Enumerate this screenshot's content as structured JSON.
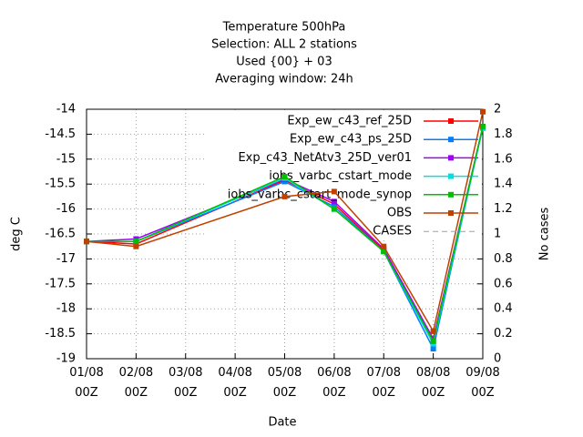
{
  "chart_data": {
    "type": "line",
    "title": [
      "Temperature 500hPa",
      "Selection: ALL      2 stations",
      "Used {00} + 03",
      "Averaging window: 24h"
    ],
    "xlabel": "Date",
    "ylabel": "deg C",
    "y2label": "No cases",
    "xlim": [
      1,
      9
    ],
    "xticks": [
      {
        "value": 1,
        "label": "01/08\n00Z"
      },
      {
        "value": 2,
        "label": "02/08\n00Z"
      },
      {
        "value": 3,
        "label": "03/08\n00Z"
      },
      {
        "value": 4,
        "label": "04/08\n00Z"
      },
      {
        "value": 5,
        "label": "05/08\n00Z"
      },
      {
        "value": 6,
        "label": "06/08\n00Z"
      },
      {
        "value": 7,
        "label": "07/08\n00Z"
      },
      {
        "value": 8,
        "label": "08/08\n00Z"
      },
      {
        "value": 9,
        "label": "09/08\n00Z"
      }
    ],
    "ylim": [
      -19,
      -14
    ],
    "yticks": [
      -19,
      -18.5,
      -18,
      -17.5,
      -17,
      -16.5,
      -16,
      -15.5,
      -15,
      -14.5,
      -14
    ],
    "y2lim": [
      0,
      2
    ],
    "y2ticks": [
      0,
      0.2,
      0.4,
      0.6,
      0.8,
      1,
      1.2,
      1.4,
      1.6,
      1.8,
      2
    ],
    "grid": true,
    "series": [
      {
        "name": "Exp_ew_c43_ref_25D",
        "color": "#ff0000",
        "x": [
          1,
          2,
          5,
          6,
          7,
          8,
          9
        ],
        "values": [
          -16.65,
          -16.7,
          -15.42,
          -15.9,
          -16.83,
          -18.7,
          -14.35
        ]
      },
      {
        "name": "Exp_ew_c43_ps_25D",
        "color": "#0080ff",
        "x": [
          1,
          2,
          5,
          6,
          7,
          8,
          9
        ],
        "values": [
          -16.65,
          -16.65,
          -15.45,
          -15.95,
          -16.85,
          -18.8,
          -14.35
        ]
      },
      {
        "name": "Exp_c43_NetAtv3_25D_ver01",
        "color": "#a000ff",
        "x": [
          1,
          2,
          5,
          6,
          7,
          8,
          9
        ],
        "values": [
          -16.65,
          -16.6,
          -15.4,
          -15.85,
          -16.8,
          -18.6,
          -14.35
        ]
      },
      {
        "name": "iobs_varbc_cstart_mode",
        "color": "#00e0e0",
        "x": [
          1,
          2,
          5,
          6,
          7,
          8,
          9
        ],
        "values": [
          -16.65,
          -16.65,
          -15.38,
          -16.0,
          -16.85,
          -18.7,
          -14.38
        ]
      },
      {
        "name": "iobs_varbc_cstart_mode_synop",
        "color": "#00c000",
        "x": [
          1,
          2,
          5,
          6,
          7,
          8,
          9
        ],
        "values": [
          -16.65,
          -16.65,
          -15.35,
          -16.0,
          -16.85,
          -18.65,
          -14.35
        ]
      },
      {
        "name": "OBS",
        "color": "#c04000",
        "x": [
          1,
          2,
          5,
          6,
          7,
          8,
          9
        ],
        "values": [
          -16.65,
          -16.75,
          -15.75,
          -15.65,
          -16.75,
          -18.45,
          -14.05
        ]
      },
      {
        "name": "CASES",
        "color": "#a0a0a0",
        "axis": "y2",
        "dashed": true,
        "x": [],
        "values": []
      }
    ]
  }
}
